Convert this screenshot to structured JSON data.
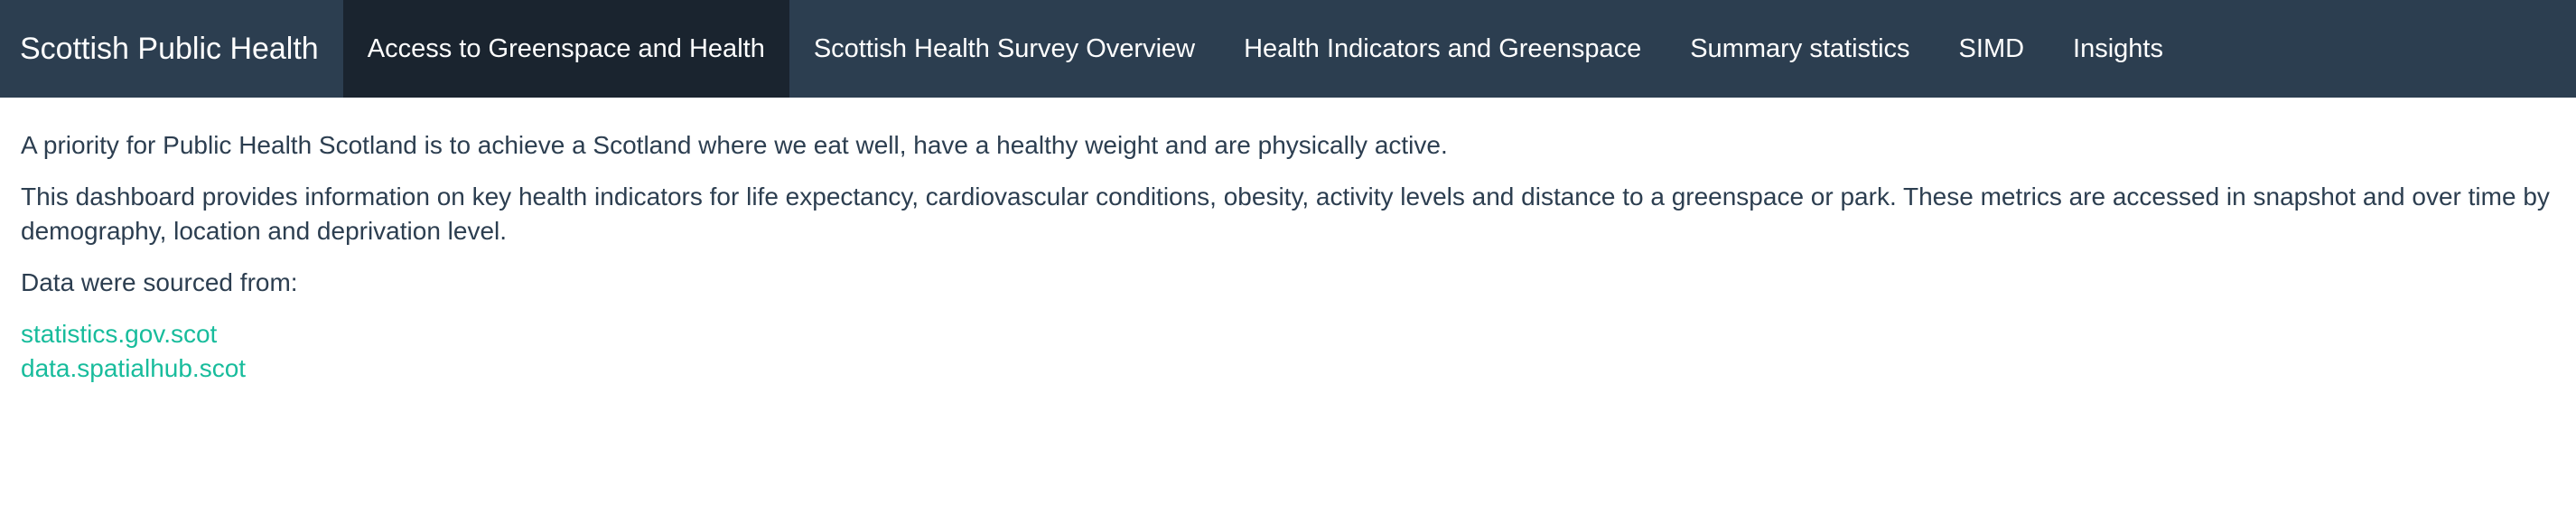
{
  "navbar": {
    "brand": "Scottish Public Health",
    "items": [
      {
        "label": "Access to Greenspace and Health",
        "active": true
      },
      {
        "label": "Scottish Health Survey Overview",
        "active": false
      },
      {
        "label": "Health Indicators and Greenspace",
        "active": false
      },
      {
        "label": "Summary statistics",
        "active": false
      },
      {
        "label": "SIMD",
        "active": false
      },
      {
        "label": "Insights",
        "active": false
      }
    ]
  },
  "main": {
    "paragraph1": "A priority for Public Health Scotland is to achieve a Scotland where we eat well, have a healthy weight and are physically active.",
    "paragraph2": "This dashboard provides information on key health indicators for life expectancy, cardiovascular conditions, obesity, activity levels and distance to a greenspace or park. These metrics are accessed in snapshot and over time by demography, location and deprivation level.",
    "sources_intro": "Data were sourced from:",
    "links": [
      "statistics.gov.scot",
      "data.spatialhub.scot"
    ]
  },
  "colors": {
    "navbar_bg": "#2c3e50",
    "navbar_active_bg": "#1a242f",
    "text": "#2c3e50",
    "link": "#18bc9c"
  }
}
